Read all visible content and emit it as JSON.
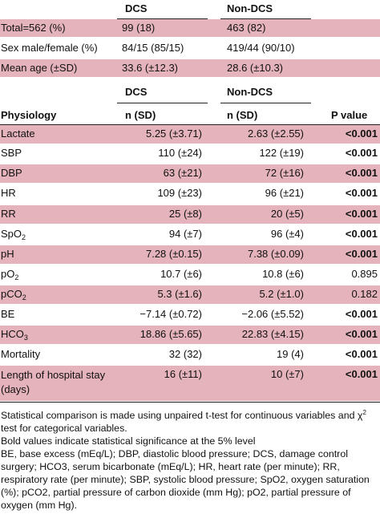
{
  "top_table": {
    "headers": [
      "DCS",
      "Non-DCS"
    ],
    "rows": [
      {
        "label": "Total=562 (%)",
        "dcs": "99 (18)",
        "non_dcs": "463 (82)"
      },
      {
        "label": "Sex male/female (%)",
        "dcs": "84/15 (85/15)",
        "non_dcs": "419/44 (90/10)"
      },
      {
        "label": "Mean age (±SD)",
        "dcs": "33.6 (±12.3)",
        "non_dcs": "28.6 (±10.3)"
      }
    ]
  },
  "physiology_table": {
    "group_headers": [
      "DCS",
      "Non-DCS"
    ],
    "column_headers": [
      "Physiology",
      "n (SD)",
      "n (SD)",
      "P value"
    ],
    "rows": [
      {
        "label": "Lactate",
        "sub": "",
        "dcs": "5.25 (±3.71)",
        "non_dcs": "2.63 (±2.55)",
        "p": "<0.001",
        "bold": true
      },
      {
        "label": "SBP",
        "sub": "",
        "dcs": "110 (±24)",
        "non_dcs": "122 (±19)",
        "p": "<0.001",
        "bold": true
      },
      {
        "label": "DBP",
        "sub": "",
        "dcs": "63 (±21)",
        "non_dcs": "72 (±16)",
        "p": "<0.001",
        "bold": true
      },
      {
        "label": "HR",
        "sub": "",
        "dcs": "109 (±23)",
        "non_dcs": "96 (±21)",
        "p": "<0.001",
        "bold": true
      },
      {
        "label": "RR",
        "sub": "",
        "dcs": "25 (±8)",
        "non_dcs": "20 (±5)",
        "p": "<0.001",
        "bold": true
      },
      {
        "label": "SpO",
        "sub": "2",
        "dcs": "94 (±7)",
        "non_dcs": "96 (±4)",
        "p": "<0.001",
        "bold": true
      },
      {
        "label": "pH",
        "sub": "",
        "dcs": "7.28 (±0.15)",
        "non_dcs": "7.38 (±0.09)",
        "p": "<0.001",
        "bold": true
      },
      {
        "label": "pO",
        "sub": "2",
        "dcs": "10.7 (±6)",
        "non_dcs": "10.8 (±6)",
        "p": "0.895",
        "bold": false
      },
      {
        "label": "pCO",
        "sub": "2",
        "dcs": "5.3 (±1.6)",
        "non_dcs": "5.2 (±1.0)",
        "p": "0.182",
        "bold": false
      },
      {
        "label": "BE",
        "sub": "",
        "dcs": "−7.14 (±0.72)",
        "non_dcs": "−2.06 (±5.52)",
        "p": "<0.001",
        "bold": true
      },
      {
        "label": "HCO",
        "sub": "3",
        "dcs": "18.86 (±5.65)",
        "non_dcs": "22.83 (±4.15)",
        "p": "<0.001",
        "bold": true
      },
      {
        "label": "Mortality",
        "sub": "",
        "dcs": "32 (32)",
        "non_dcs": "19 (4)",
        "p": "<0.001",
        "bold": true
      },
      {
        "label": "Length of hospital stay (days)",
        "sub": "",
        "dcs": "16 (±11)",
        "non_dcs": "10 (±7)",
        "p": "<0.001",
        "bold": true
      }
    ]
  },
  "notes": {
    "line1": "Statistical comparison is made using unpaired t-test for continuous variables and χ",
    "line1_sup": "2",
    "line1_end": " test for categorical variables.",
    "line2": "Bold values indicate statistical significance at the 5% level",
    "abbrev": "BE, base excess (mEq/L); DBP, diastolic blood pressure; DCS, damage control surgery; HCO3, serum bicarbonate (mEq/L); HR, heart rate (per minute); RR, respiratory rate (per minute); SBP, systolic blood pressure; SpO2, oxygen saturation (%); pCO2, partial pressure of carbon dioxide (mm Hg); pO2, partial pressure of oxygen (mm Hg)."
  },
  "colors": {
    "shade": "#e5b3bb",
    "rule": "#222222"
  }
}
